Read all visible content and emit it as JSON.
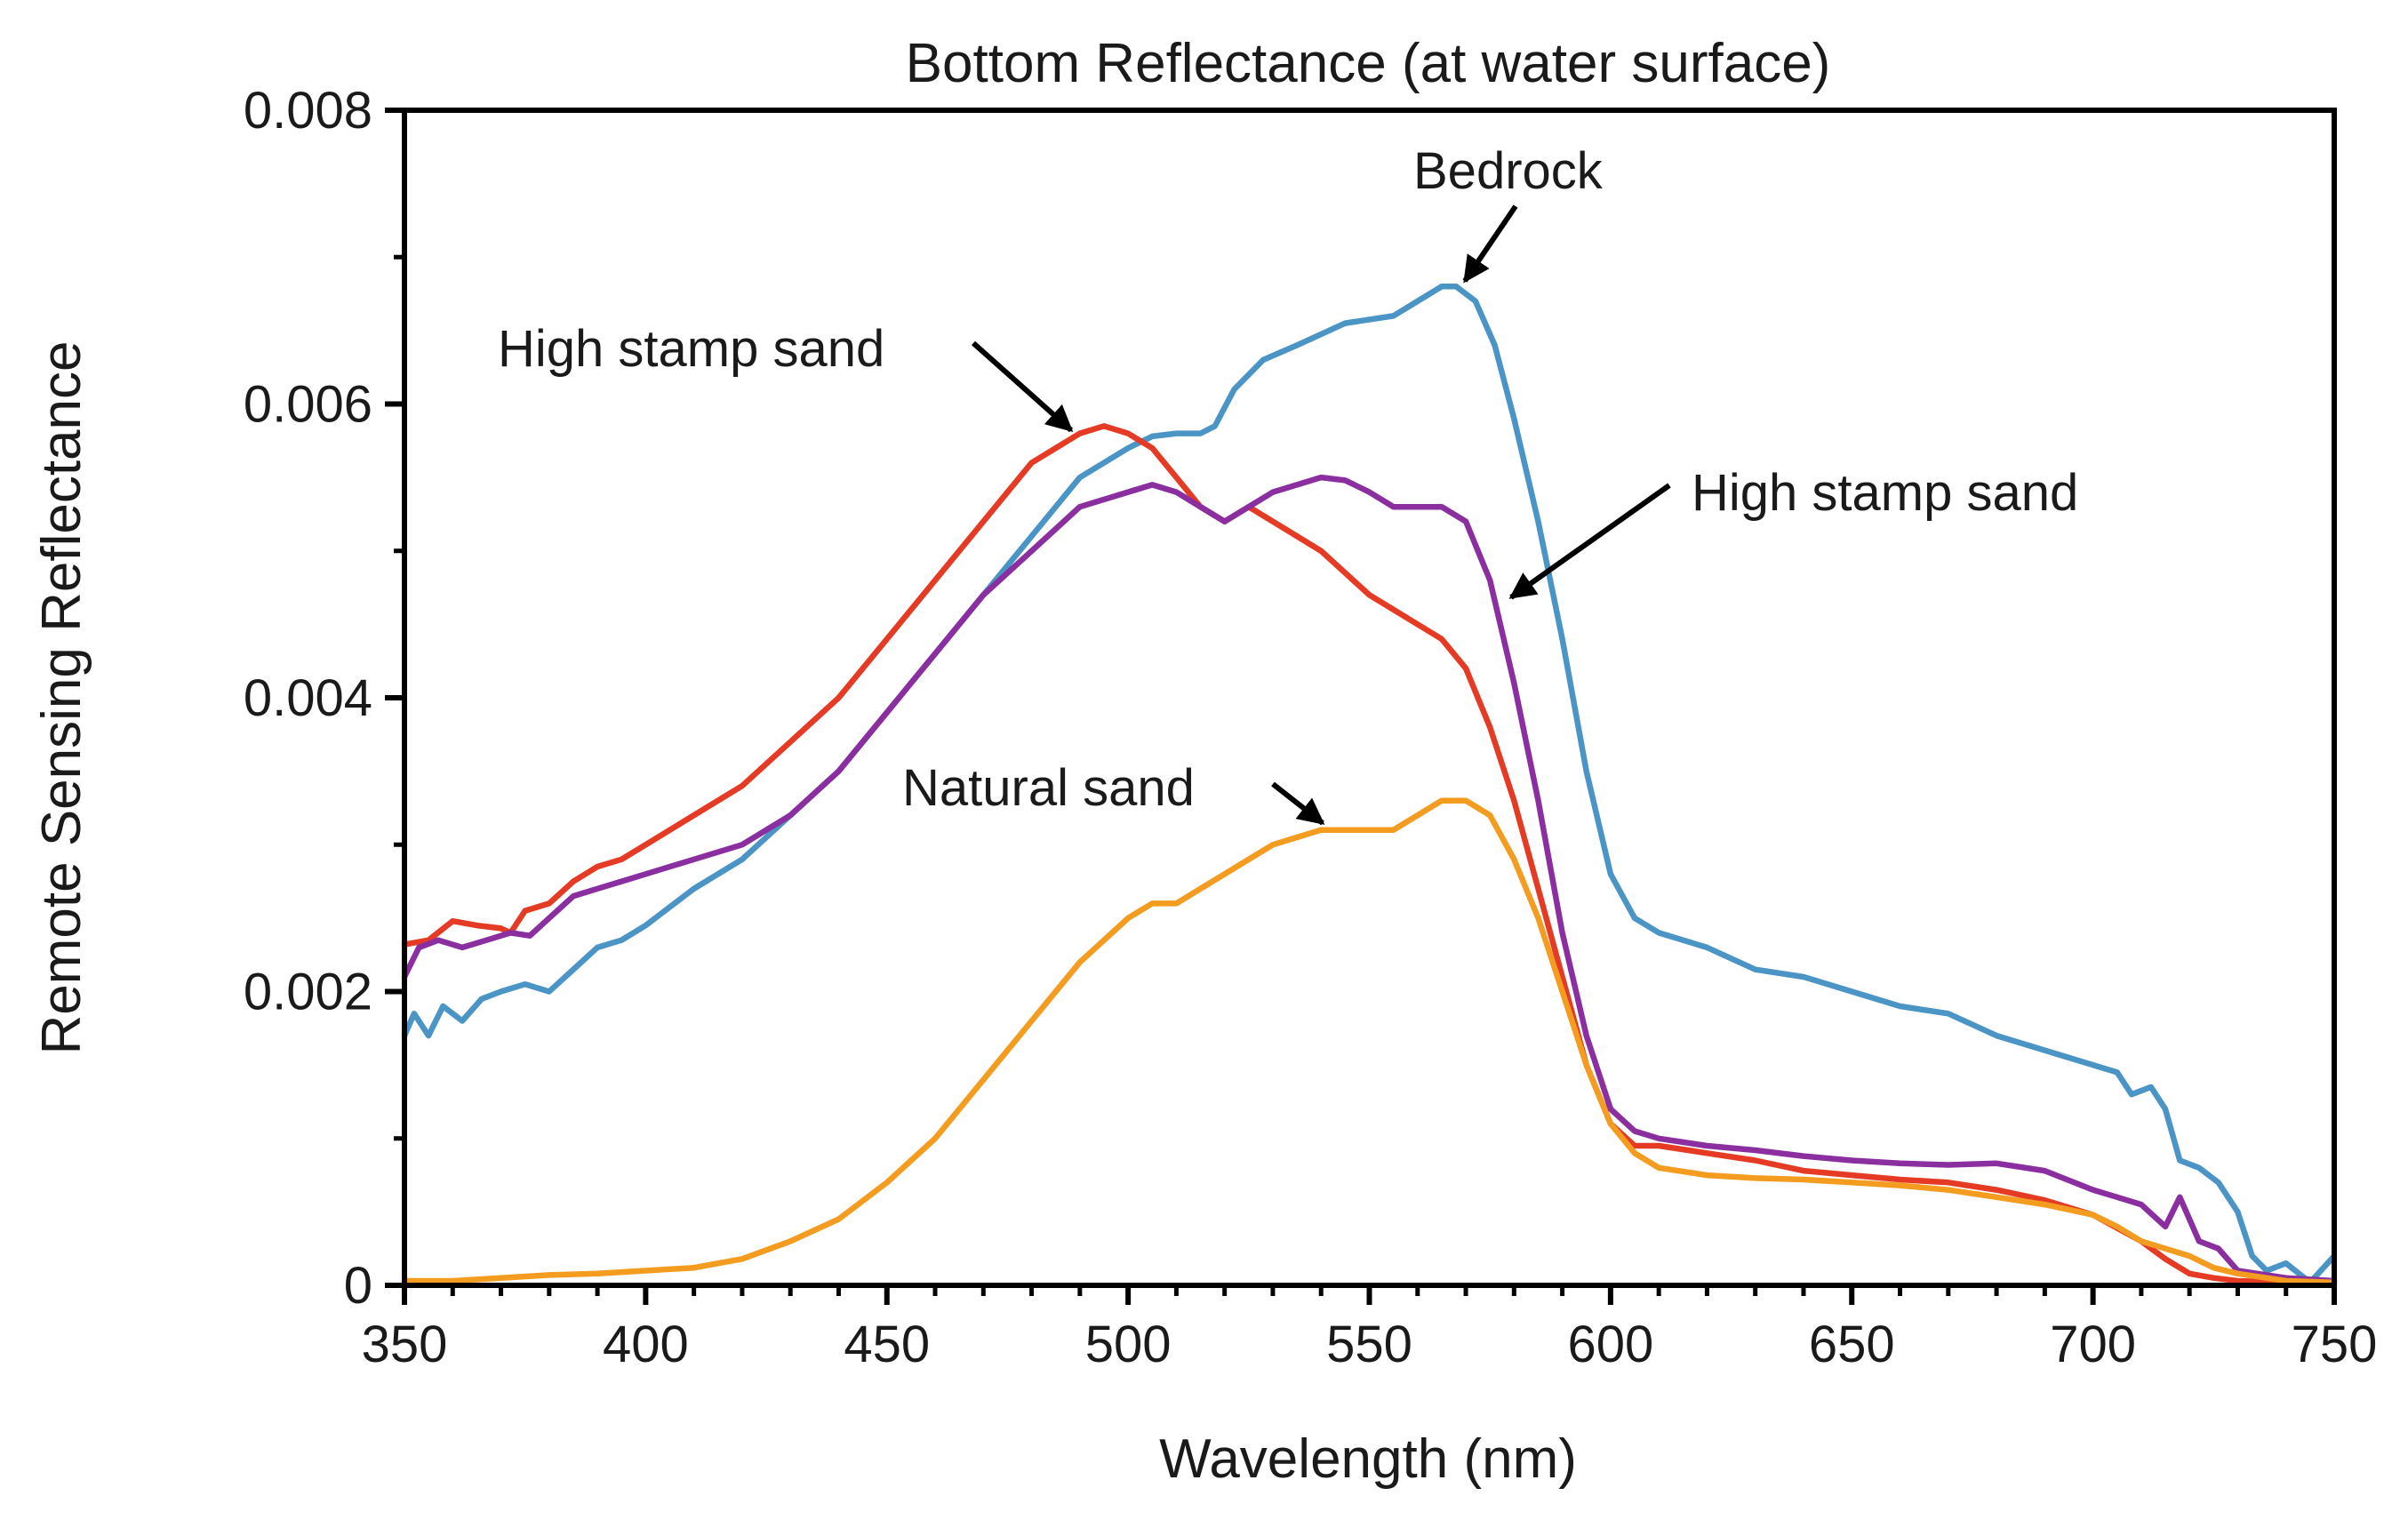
{
  "chart_data": {
    "type": "line",
    "title": "Bottom Reflectance (at water surface)",
    "xlabel": "Wavelength (nm)",
    "ylabel": "Remote Sensing Reflectance",
    "xlim": [
      350,
      750
    ],
    "ylim": [
      0,
      0.008
    ],
    "x_ticks": [
      350,
      400,
      450,
      500,
      550,
      600,
      650,
      700,
      750
    ],
    "x_tick_labels": [
      "350",
      "400",
      "450",
      "500",
      "550",
      "600",
      "650",
      "700",
      "750"
    ],
    "x_minor_step": 10,
    "y_ticks": [
      0,
      0.002,
      0.004,
      0.006,
      0.008
    ],
    "y_tick_labels": [
      "0",
      "0.002",
      "0.004",
      "0.006",
      "0.008"
    ],
    "y_minor_step": 0.001,
    "grid": false,
    "legend": "none",
    "series": [
      {
        "name": "Bedrock",
        "color": "#4a94c6",
        "x": [
          350,
          352,
          355,
          358,
          362,
          366,
          370,
          375,
          380,
          385,
          390,
          395,
          400,
          410,
          420,
          430,
          440,
          450,
          460,
          470,
          480,
          490,
          500,
          505,
          510,
          515,
          518,
          522,
          528,
          535,
          545,
          555,
          560,
          565,
          568,
          572,
          576,
          580,
          585,
          590,
          595,
          600,
          605,
          610,
          620,
          630,
          640,
          650,
          660,
          670,
          680,
          690,
          700,
          705,
          708,
          712,
          715,
          718,
          722,
          726,
          730,
          733,
          736,
          740,
          745,
          750
        ],
        "y": [
          0.0017,
          0.00185,
          0.0017,
          0.0019,
          0.0018,
          0.00195,
          0.002,
          0.00205,
          0.002,
          0.00215,
          0.0023,
          0.00235,
          0.00245,
          0.0027,
          0.0029,
          0.0032,
          0.0035,
          0.0039,
          0.0043,
          0.0047,
          0.0051,
          0.0055,
          0.0057,
          0.00578,
          0.0058,
          0.0058,
          0.00585,
          0.0061,
          0.0063,
          0.0064,
          0.00655,
          0.0066,
          0.0067,
          0.0068,
          0.0068,
          0.0067,
          0.0064,
          0.0059,
          0.0052,
          0.0044,
          0.0035,
          0.0028,
          0.0025,
          0.0024,
          0.0023,
          0.00215,
          0.0021,
          0.002,
          0.0019,
          0.00185,
          0.0017,
          0.0016,
          0.0015,
          0.00145,
          0.0013,
          0.00135,
          0.0012,
          0.00085,
          0.0008,
          0.0007,
          0.0005,
          0.0002,
          0.0001,
          0.00015,
          2e-05,
          0.0002
        ]
      },
      {
        "name": "High stamp sand",
        "color": "#e53a23",
        "x": [
          350,
          355,
          360,
          365,
          370,
          372,
          375,
          380,
          385,
          390,
          395,
          400,
          410,
          420,
          430,
          440,
          450,
          460,
          470,
          480,
          490,
          495,
          500,
          505,
          510,
          515,
          520,
          525,
          530,
          540,
          550,
          560,
          565,
          570,
          575,
          580,
          585,
          590,
          595,
          600,
          605,
          610,
          620,
          630,
          640,
          650,
          660,
          670,
          680,
          690,
          700,
          710,
          715,
          720,
          725,
          730,
          740,
          750
        ],
        "y": [
          0.00232,
          0.00235,
          0.00248,
          0.00245,
          0.00243,
          0.0024,
          0.00255,
          0.0026,
          0.00275,
          0.00285,
          0.0029,
          0.003,
          0.0032,
          0.0034,
          0.0037,
          0.004,
          0.0044,
          0.0048,
          0.0052,
          0.0056,
          0.0058,
          0.00585,
          0.0058,
          0.0057,
          0.0055,
          0.0053,
          0.0052,
          0.0053,
          0.0052,
          0.005,
          0.0047,
          0.0045,
          0.0044,
          0.0042,
          0.0038,
          0.0033,
          0.0027,
          0.0021,
          0.0015,
          0.0011,
          0.00095,
          0.00095,
          0.0009,
          0.00085,
          0.00078,
          0.00075,
          0.00072,
          0.0007,
          0.00065,
          0.00058,
          0.00048,
          0.0003,
          0.00018,
          8e-05,
          5e-05,
          3e-05,
          2e-05,
          2e-05
        ]
      },
      {
        "name": "High stamp sand",
        "color": "#8b2fa0",
        "x": [
          350,
          353,
          357,
          362,
          367,
          372,
          376,
          380,
          385,
          390,
          395,
          400,
          410,
          420,
          430,
          440,
          450,
          460,
          470,
          480,
          490,
          500,
          505,
          510,
          515,
          520,
          525,
          530,
          540,
          545,
          550,
          555,
          560,
          565,
          570,
          575,
          580,
          585,
          590,
          595,
          600,
          605,
          610,
          620,
          630,
          640,
          650,
          660,
          670,
          680,
          690,
          700,
          705,
          710,
          715,
          718,
          722,
          726,
          730,
          740,
          750
        ],
        "y": [
          0.0021,
          0.0023,
          0.00235,
          0.0023,
          0.00235,
          0.0024,
          0.00238,
          0.0025,
          0.00265,
          0.0027,
          0.00275,
          0.0028,
          0.0029,
          0.003,
          0.0032,
          0.0035,
          0.0039,
          0.0043,
          0.0047,
          0.005,
          0.0053,
          0.0054,
          0.00545,
          0.0054,
          0.0053,
          0.0052,
          0.0053,
          0.0054,
          0.0055,
          0.00548,
          0.0054,
          0.0053,
          0.0053,
          0.0053,
          0.0052,
          0.0048,
          0.0041,
          0.0033,
          0.0024,
          0.0017,
          0.0012,
          0.00105,
          0.001,
          0.00095,
          0.00092,
          0.00088,
          0.00085,
          0.00083,
          0.00082,
          0.00083,
          0.00078,
          0.00065,
          0.0006,
          0.00055,
          0.0004,
          0.0006,
          0.0003,
          0.00025,
          0.0001,
          5e-05,
          3e-05
        ]
      },
      {
        "name": "Natural sand",
        "color": "#f39c1f",
        "x": [
          350,
          360,
          370,
          380,
          390,
          400,
          410,
          420,
          430,
          440,
          450,
          460,
          470,
          480,
          490,
          500,
          505,
          510,
          515,
          520,
          525,
          530,
          535,
          540,
          545,
          550,
          555,
          560,
          565,
          570,
          575,
          580,
          585,
          590,
          595,
          600,
          605,
          610,
          620,
          630,
          640,
          650,
          660,
          670,
          680,
          690,
          700,
          705,
          710,
          715,
          720,
          725,
          730,
          740,
          750
        ],
        "y": [
          3e-05,
          3e-05,
          5e-05,
          7e-05,
          8e-05,
          0.0001,
          0.00012,
          0.00018,
          0.0003,
          0.00045,
          0.0007,
          0.001,
          0.0014,
          0.0018,
          0.0022,
          0.0025,
          0.0026,
          0.0026,
          0.0027,
          0.0028,
          0.0029,
          0.003,
          0.00305,
          0.0031,
          0.0031,
          0.0031,
          0.0031,
          0.0032,
          0.0033,
          0.0033,
          0.0032,
          0.0029,
          0.0025,
          0.002,
          0.0015,
          0.0011,
          0.0009,
          0.0008,
          0.00075,
          0.00073,
          0.00072,
          0.0007,
          0.00068,
          0.00065,
          0.0006,
          0.00055,
          0.00048,
          0.0004,
          0.0003,
          0.00025,
          0.0002,
          0.00012,
          8e-05,
          3e-05,
          2e-05
        ]
      }
    ],
    "annotations": [
      {
        "text": "Bedrock",
        "series": 0,
        "target": [
          568,
          0.0068
        ]
      },
      {
        "text": "High stamp sand",
        "series": 1,
        "target": [
          490,
          0.0058
        ]
      },
      {
        "text": "High stamp sand",
        "series": 2,
        "target": [
          579,
          0.0047
        ]
      },
      {
        "text": "Natural sand",
        "series": 3,
        "target": [
          543,
          0.0031
        ]
      }
    ]
  }
}
